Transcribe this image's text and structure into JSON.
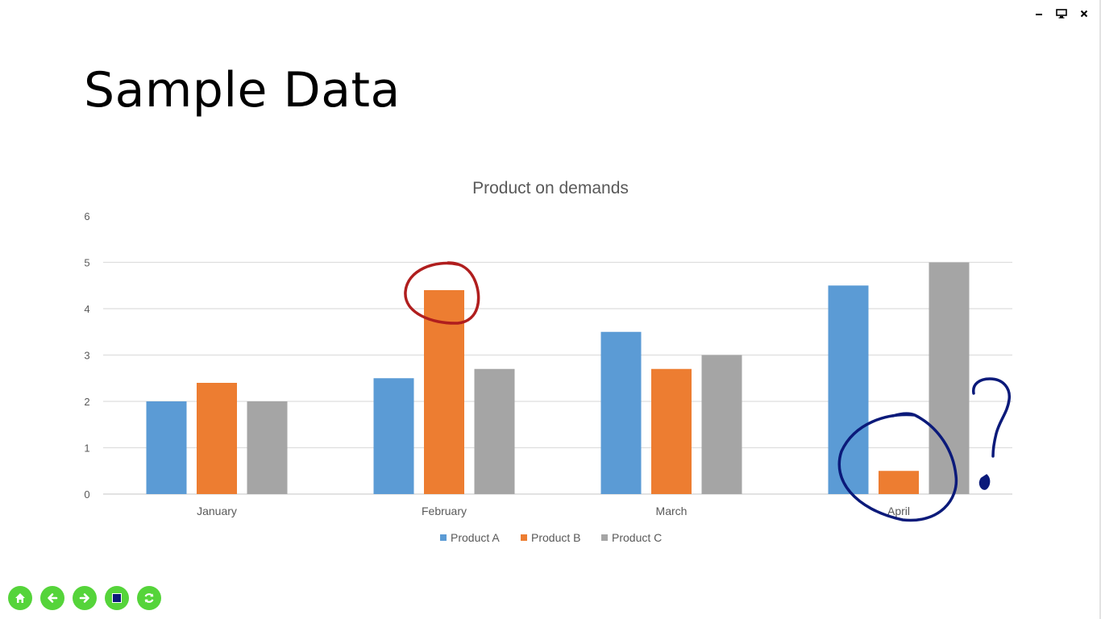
{
  "slide": {
    "title": "Sample Data"
  },
  "window_controls": [
    {
      "name": "minimize-button",
      "icon": "minimize-icon"
    },
    {
      "name": "display-button",
      "icon": "monitor-icon"
    },
    {
      "name": "close-button",
      "icon": "close-icon"
    }
  ],
  "toolbar": [
    {
      "name": "home-button",
      "icon": "home-icon"
    },
    {
      "name": "back-button",
      "icon": "arrow-left-icon"
    },
    {
      "name": "forward-button",
      "icon": "arrow-right-icon"
    },
    {
      "name": "stop-button",
      "icon": "stop-square-icon"
    },
    {
      "name": "refresh-button",
      "icon": "refresh-icon"
    }
  ],
  "colors": {
    "product_a": "#5b9bd5",
    "product_b": "#ed7d31",
    "product_c": "#a5a5a5",
    "annotation_red": "#b01e1e",
    "annotation_blue": "#0b1a7a",
    "toolbar_green": "#55d43a"
  },
  "chart_data": {
    "type": "bar",
    "title": "Product on demands",
    "categories": [
      "January",
      "February",
      "March",
      "April"
    ],
    "series": [
      {
        "name": "Product A",
        "values": [
          2,
          2.5,
          3.5,
          4.5
        ]
      },
      {
        "name": "Product B",
        "values": [
          2.4,
          4.4,
          2.7,
          0.5
        ]
      },
      {
        "name": "Product C",
        "values": [
          2,
          2.7,
          3,
          5
        ]
      }
    ],
    "ylim": [
      0,
      6
    ],
    "yticks": [
      0,
      1,
      2,
      3,
      4,
      5,
      6
    ],
    "grid": true,
    "legend": "bottom",
    "xlabel": "",
    "ylabel": "",
    "annotations": [
      {
        "type": "circle",
        "target": "February / Product B",
        "color": "red"
      },
      {
        "type": "circle",
        "target": "April / Product B",
        "color": "blue"
      },
      {
        "type": "text",
        "text": "?",
        "color": "blue",
        "near": "April"
      }
    ]
  }
}
